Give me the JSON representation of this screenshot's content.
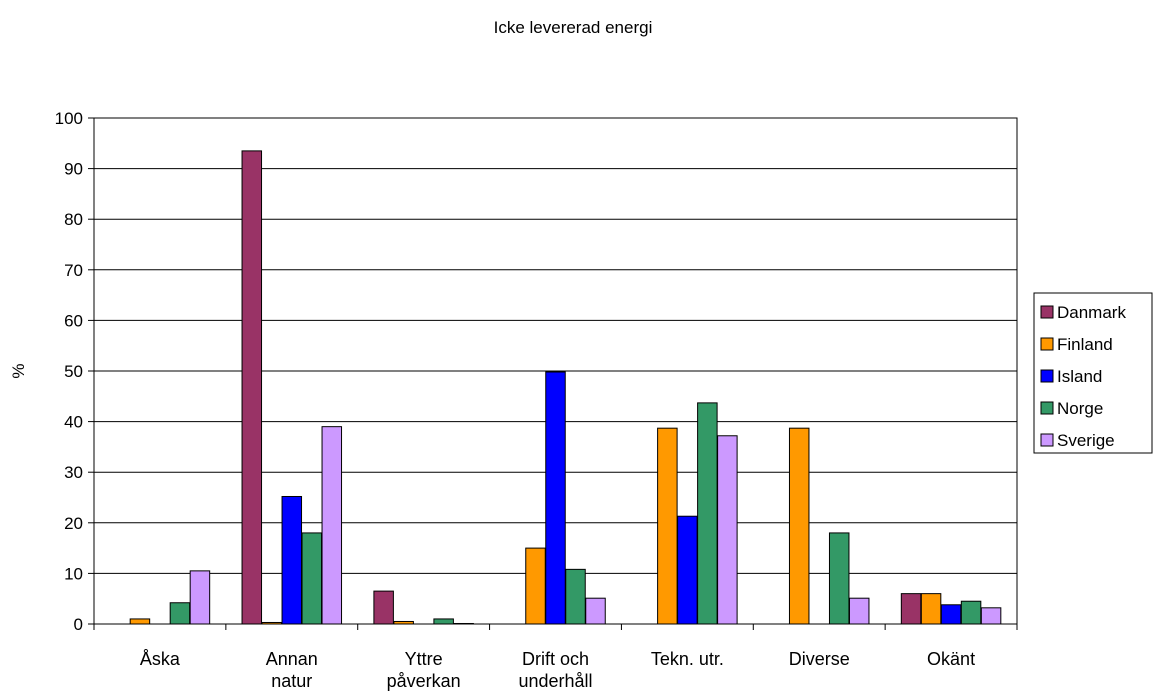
{
  "chart_data": {
    "type": "bar",
    "title": "Icke levererad energi",
    "ylabel": "%",
    "xlabel": "",
    "ylim": [
      0,
      100
    ],
    "yticks": [
      0,
      10,
      20,
      30,
      40,
      50,
      60,
      70,
      80,
      90,
      100
    ],
    "grid": true,
    "legend_position": "right",
    "categories": [
      [
        "Åska"
      ],
      [
        "Annan",
        "natur"
      ],
      [
        "Yttre",
        "påverkan"
      ],
      [
        "Drift och",
        "underhåll"
      ],
      [
        "Tekn. utr."
      ],
      [
        "Diverse"
      ],
      [
        "Okänt"
      ]
    ],
    "series": [
      {
        "name": "Danmark",
        "color": "#993366",
        "values": [
          0,
          93.5,
          6.5,
          0,
          0,
          0,
          6
        ]
      },
      {
        "name": "Finland",
        "color": "#FF9900",
        "values": [
          1,
          0.3,
          0.5,
          15,
          38.7,
          38.7,
          6
        ]
      },
      {
        "name": "Island",
        "color": "#0000FF",
        "values": [
          0,
          25.2,
          0,
          49.8,
          21.3,
          0,
          3.8
        ]
      },
      {
        "name": "Norge",
        "color": "#339966",
        "values": [
          4.2,
          18,
          1,
          10.8,
          43.7,
          18,
          4.5
        ]
      },
      {
        "name": "Sverige",
        "color": "#CC99FF",
        "values": [
          10.5,
          39,
          0.1,
          5.1,
          37.2,
          5.1,
          3.2
        ]
      }
    ]
  }
}
